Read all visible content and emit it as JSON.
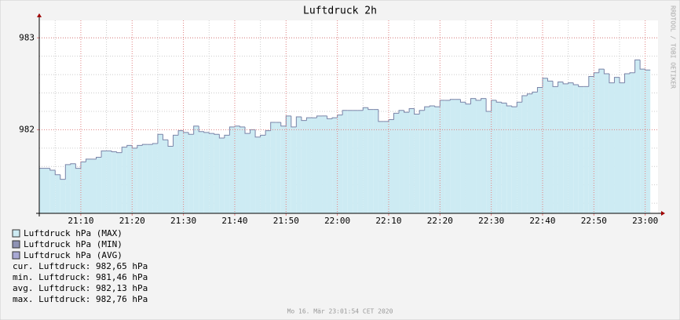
{
  "chart_data": {
    "type": "step-area",
    "title": "Luftdruck 2h",
    "side_text": "RRDTOOL / TOBI OETIKER",
    "footer": "Mo 16. Mär 23:01:54 CET 2020",
    "xlim": [
      1.9,
      122.5
    ],
    "xticks": [
      {
        "value": 10,
        "label": "21:10"
      },
      {
        "value": 20,
        "label": "21:20"
      },
      {
        "value": 30,
        "label": "21:30"
      },
      {
        "value": 40,
        "label": "21:40"
      },
      {
        "value": 50,
        "label": "21:50"
      },
      {
        "value": 60,
        "label": "22:00"
      },
      {
        "value": 70,
        "label": "22:10"
      },
      {
        "value": 80,
        "label": "22:20"
      },
      {
        "value": 90,
        "label": "22:30"
      },
      {
        "value": 100,
        "label": "22:40"
      },
      {
        "value": 110,
        "label": "22:50"
      },
      {
        "value": 120,
        "label": "23:00"
      }
    ],
    "xminorticks": [
      5,
      15,
      25,
      35,
      45,
      55,
      65,
      75,
      85,
      95,
      105,
      115
    ],
    "ylim": [
      981.09,
      983.19
    ],
    "yticks": [
      982,
      983
    ],
    "yminorticks": [
      981.2,
      981.4,
      981.6,
      981.8,
      982.2,
      982.4,
      982.6,
      982.8,
      983.0
    ],
    "grid": true,
    "x": [
      2,
      4,
      5,
      6,
      7,
      8,
      9,
      10,
      11,
      12,
      13,
      14,
      15,
      16,
      17,
      18,
      19,
      20,
      21,
      22,
      23,
      24,
      25,
      26,
      27,
      28,
      29,
      30,
      31,
      32,
      33,
      34,
      35,
      36,
      37,
      38,
      39,
      40,
      41,
      42,
      43,
      44,
      45,
      46,
      47,
      48,
      49,
      50,
      51,
      52,
      53,
      54,
      55,
      56,
      57,
      58,
      59,
      60,
      61,
      62,
      63,
      64,
      65,
      66,
      67,
      68,
      69,
      70,
      71,
      72,
      73,
      74,
      75,
      76,
      77,
      78,
      79,
      80,
      81,
      82,
      83,
      84,
      85,
      86,
      87,
      88,
      89,
      90,
      91,
      92,
      93,
      94,
      95,
      96,
      97,
      98,
      99,
      100,
      101,
      102,
      103,
      104,
      105,
      106,
      107,
      108,
      109,
      110,
      111,
      112,
      113,
      114,
      115,
      116,
      117,
      118,
      119,
      120
    ],
    "series": [
      {
        "name": "Luftdruck hPa (MAX)",
        "color": "#cdebf3",
        "line_color": "#7a84a8",
        "values": [
          981.58,
          981.56,
          981.51,
          981.46,
          981.62,
          981.63,
          981.58,
          981.65,
          981.68,
          981.68,
          981.7,
          981.77,
          981.77,
          981.76,
          981.75,
          981.81,
          981.83,
          981.8,
          981.83,
          981.84,
          981.84,
          981.85,
          981.95,
          981.89,
          981.82,
          981.94,
          981.99,
          981.97,
          981.95,
          982.04,
          981.98,
          981.97,
          981.96,
          981.95,
          981.91,
          981.94,
          982.03,
          982.04,
          982.03,
          981.96,
          982.0,
          981.92,
          981.94,
          981.99,
          982.08,
          982.08,
          982.04,
          982.15,
          982.03,
          982.14,
          982.1,
          982.13,
          982.13,
          982.15,
          982.15,
          982.12,
          982.13,
          982.16,
          982.21,
          982.21,
          982.21,
          982.21,
          982.24,
          982.22,
          982.22,
          982.09,
          982.09,
          982.11,
          982.18,
          982.21,
          982.19,
          982.23,
          982.17,
          982.21,
          982.25,
          982.26,
          982.25,
          982.32,
          982.32,
          982.33,
          982.33,
          982.3,
          982.28,
          982.34,
          982.32,
          982.34,
          982.2,
          982.32,
          982.3,
          982.29,
          982.26,
          982.25,
          982.3,
          982.37,
          982.39,
          982.41,
          982.46,
          982.56,
          982.53,
          982.47,
          982.52,
          982.5,
          982.51,
          982.49,
          982.47,
          982.47,
          982.58,
          982.62,
          982.66,
          982.61,
          982.51,
          982.57,
          982.51,
          982.61,
          982.62,
          982.76,
          982.66,
          982.65
        ]
      }
    ],
    "legend": [
      {
        "name": "Luftdruck hPa (MAX)",
        "color": "#cdebf3"
      },
      {
        "name": "Luftdruck hPa (MIN)",
        "color": "#8f93b5"
      },
      {
        "name": "Luftdruck hPa (AVG)",
        "color": "#a9a9d4"
      }
    ],
    "stats": [
      "cur. Luftdruck: 982,65 hPa",
      "min. Luftdruck: 981,46 hPa",
      "avg. Luftdruck: 982,13 hPa",
      "max. Luftdruck: 982,76 hPa"
    ]
  }
}
